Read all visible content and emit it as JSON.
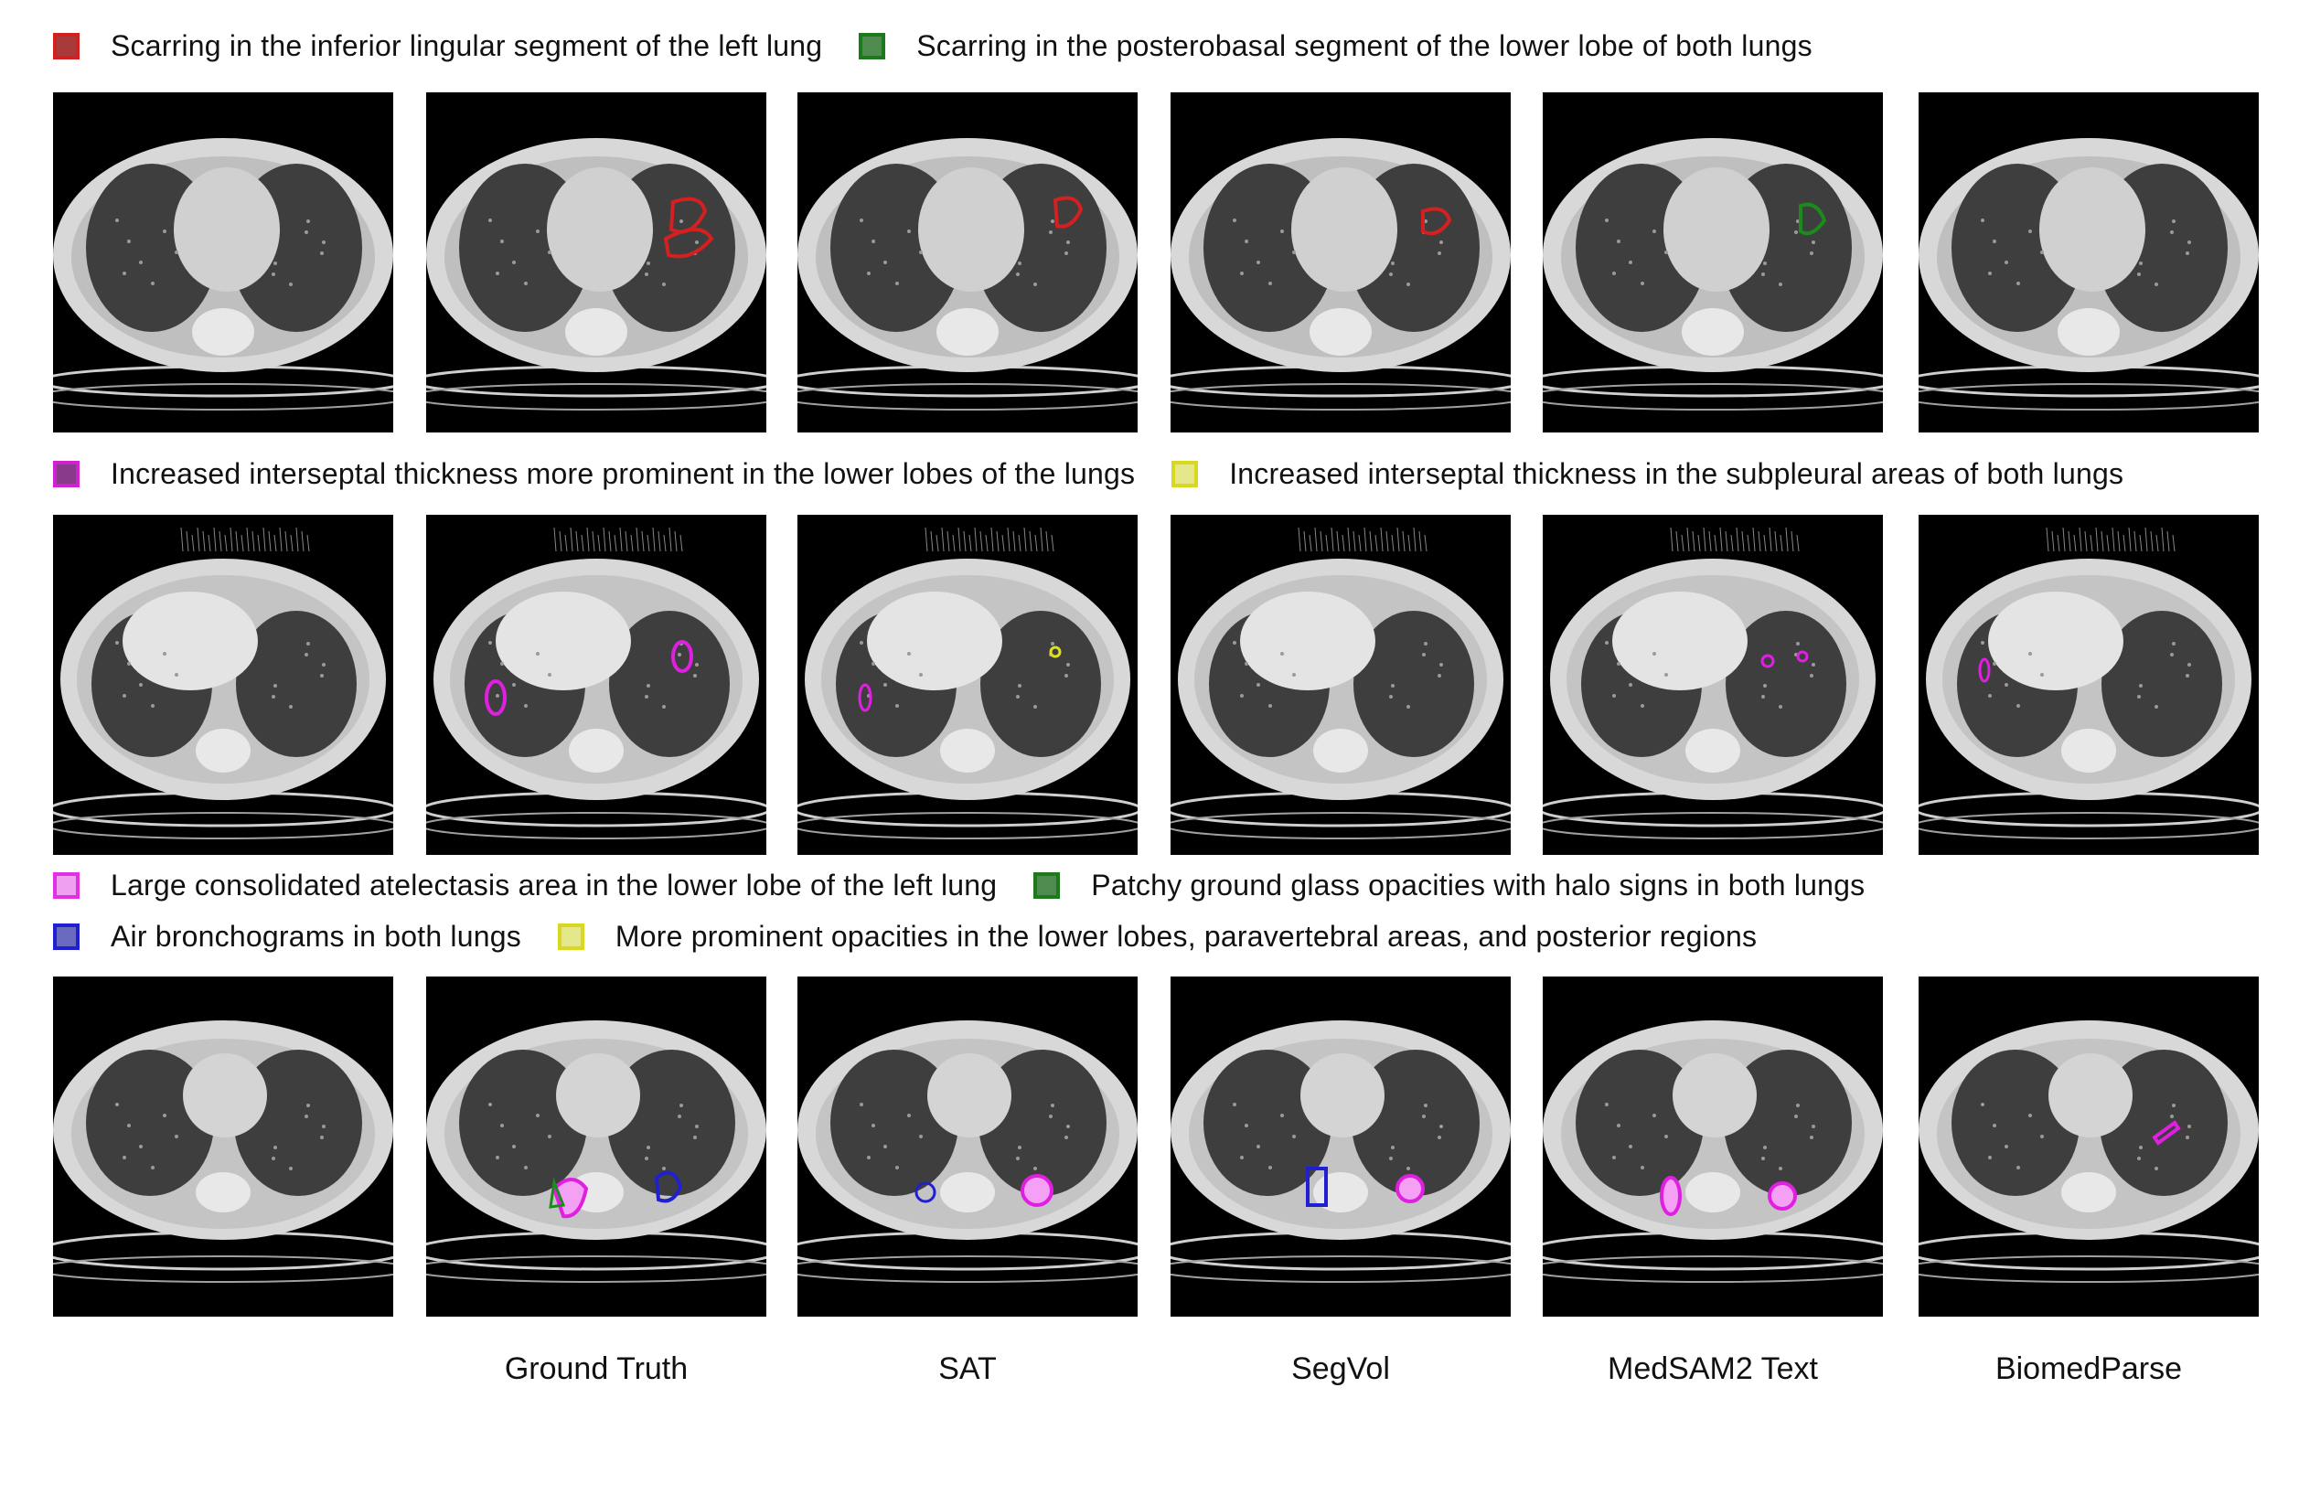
{
  "rows": [
    {
      "legend_lines": [
        [
          {
            "label": "Scarring in the inferior lingular segment of the left lung",
            "fill": "#a83a3a",
            "border": "#d02020"
          },
          {
            "label": "Scarring in the posterobasal segment of the lower lobe of both lungs",
            "fill": "#4f8a4f",
            "border": "#1c7a1c"
          }
        ]
      ]
    },
    {
      "legend_lines": [
        [
          {
            "label": "Increased interseptal thickness more prominent in the lower lobes of the lungs",
            "fill": "#8a3a8a",
            "border": "#d020d0"
          },
          {
            "label": "Increased interseptal thickness in the subpleural areas of both lungs",
            "fill": "#e6e68a",
            "border": "#d8d820"
          }
        ]
      ]
    },
    {
      "legend_lines": [
        [
          {
            "label": "Large consolidated atelectasis area in the lower lobe of the left lung",
            "fill": "#f0a0f0",
            "border": "#e030e0"
          },
          {
            "label": "Patchy ground glass opacities with halo signs in both lungs",
            "fill": "#4f8a4f",
            "border": "#1c7a1c"
          }
        ],
        [
          {
            "label": "Air bronchograms in both lungs",
            "fill": "#6a6ac0",
            "border": "#2020d0"
          },
          {
            "label": "More prominent opacities in the lower lobes, paravertebral areas, and posterior regions",
            "fill": "#e6e68a",
            "border": "#d8d820"
          }
        ]
      ]
    }
  ],
  "columns": [
    "",
    "Ground Truth",
    "SAT",
    "SegVol",
    "MedSAM2 Text",
    "BiomedParse"
  ],
  "overlay_colors": {
    "red": "#d42020",
    "green": "#1c8a1c",
    "magenta": "#e020e0",
    "pink_fill": "#f4a0f4",
    "blue": "#2020d0",
    "yellow": "#e0e020"
  }
}
